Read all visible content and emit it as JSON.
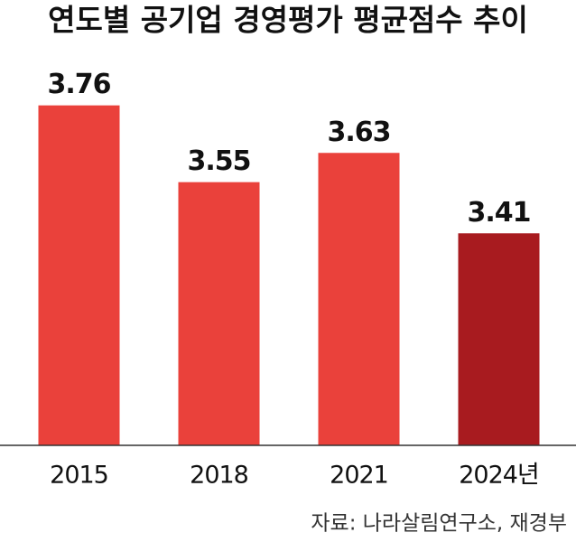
{
  "chart_data": {
    "type": "bar",
    "title": "연도별 공기업 경영평가 평균점수 추이",
    "categories": [
      "2015",
      "2018",
      "2021",
      "2024년"
    ],
    "values": [
      3.76,
      3.55,
      3.63,
      3.41
    ],
    "colors": [
      "#ea413b",
      "#ea413b",
      "#ea413b",
      "#a81b1f"
    ],
    "ylim": [
      2.83,
      3.9
    ],
    "source": "자료: 나라살림연구소, 재경부"
  }
}
